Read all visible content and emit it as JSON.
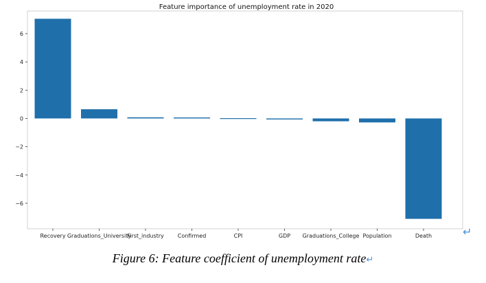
{
  "chart_data": {
    "type": "bar",
    "title": "Feature importance of unemployment rate in 2020",
    "categories": [
      "Recovery",
      "Graduations_University",
      "First_industry",
      "Confirmed",
      "CPI",
      "GDP",
      "Graduations_College",
      "Population",
      "Death"
    ],
    "values": [
      7.05,
      0.65,
      0.08,
      0.07,
      0.02,
      -0.07,
      -0.2,
      -0.28,
      -7.1
    ],
    "ylim": [
      -7.8,
      7.6
    ],
    "yticks": [
      -6,
      -4,
      -2,
      0,
      2,
      4,
      6
    ],
    "ytick_labels": [
      "−6",
      "−4",
      "−2",
      "0",
      "2",
      "4",
      "6"
    ],
    "bar_color": "#1f6fab",
    "grid": false
  },
  "caption": "Figure 6: Feature coefficient of unemployment rate",
  "return_mark": "↵",
  "edge_return_mark": "↵"
}
